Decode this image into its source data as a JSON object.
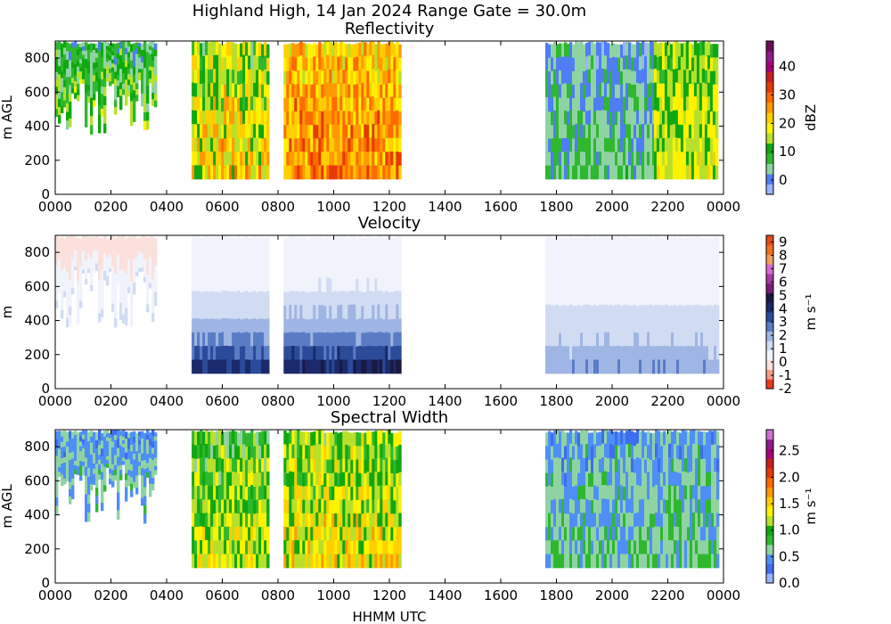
{
  "suptitle": "Highland High, 14 Jan 2024 Range Gate = 30.0m",
  "xlabel": "HHMM UTC",
  "colors": {
    "refl": [
      "#9ab4ff",
      "#4f7df5",
      "#8fd3a3",
      "#2fb82f",
      "#0fa80f",
      "#b8e02a",
      "#fff200",
      "#ffcf00",
      "#ff9a00",
      "#ff6a00",
      "#e43a00",
      "#c81e1e",
      "#a8007a",
      "#8e1a8e",
      "#6d0c5a"
    ],
    "vel": [
      "#e83c1e",
      "#f59c88",
      "#fbe0dc",
      "#f0f3fb",
      "#d0dcf2",
      "#9fb5e3",
      "#5a7cc5",
      "#2b4a9a",
      "#1a2a6a",
      "#1a1a40",
      "#7a1a7a",
      "#a63aa6",
      "#d86ad8",
      "#f0a060",
      "#f07020",
      "#e84a1a"
    ],
    "sw": [
      "#9ab4ff",
      "#3f6cf0",
      "#4f8ff5",
      "#8fd3a3",
      "#2fb82f",
      "#0fa80f",
      "#b8e02a",
      "#fff200",
      "#ffcf00",
      "#ff9a00",
      "#ff6a00",
      "#e43a00",
      "#c81e1e",
      "#a8007a",
      "#8e1a8e",
      "#d070d0"
    ]
  },
  "chart_data": [
    {
      "type": "heatmap",
      "title": "Reflectivity",
      "ylabel": "m AGL",
      "colorbar_label": "dBZ",
      "colorbar_ticks": [
        "0",
        "10",
        "20",
        "30",
        "40"
      ],
      "clim": [
        -5,
        49
      ],
      "xlim": [
        0,
        2400
      ],
      "ylim": [
        0,
        900
      ],
      "x_ticks": [
        "0000",
        "0200",
        "0400",
        "0600",
        "0800",
        "1000",
        "1200",
        "1400",
        "1600",
        "1800",
        "2000",
        "2200",
        "0000"
      ],
      "y_ticks": [
        "0",
        "200",
        "400",
        "600",
        "800"
      ],
      "segments": [
        {
          "x": [
            0,
            360
          ],
          "y_bottom": 450,
          "value_range": [
            0,
            18
          ]
        },
        {
          "x": [
            490,
            760
          ],
          "y_bottom": 90,
          "value_range": [
            5,
            30
          ]
        },
        {
          "x": [
            820,
            1240
          ],
          "y_bottom": 90,
          "value_range": [
            15,
            35
          ]
        },
        {
          "x": [
            1760,
            2150
          ],
          "y_bottom": 90,
          "value_range": [
            -2,
            10
          ]
        },
        {
          "x": [
            2150,
            2380
          ],
          "y_bottom": 90,
          "value_range": [
            8,
            22
          ]
        }
      ]
    },
    {
      "type": "heatmap",
      "title": "Velocity",
      "ylabel": "m",
      "colorbar_label": "m s⁻¹",
      "colorbar_ticks": [
        "-2",
        "-1",
        "0",
        "1",
        "2",
        "3",
        "4",
        "5",
        "6",
        "7",
        "8",
        "9"
      ],
      "clim": [
        -2,
        9.5
      ],
      "xlim": [
        0,
        2400
      ],
      "ylim": [
        0,
        900
      ],
      "x_ticks": [
        "0000",
        "0200",
        "0400",
        "0600",
        "0800",
        "1000",
        "1200",
        "1400",
        "1600",
        "1800",
        "2000",
        "2200",
        "0000"
      ],
      "y_ticks": [
        "0",
        "200",
        "400",
        "600",
        "800"
      ],
      "segments": [
        {
          "x": [
            0,
            360
          ],
          "y_bottom": 450,
          "value_range": [
            0,
            1.5
          ]
        },
        {
          "x": [
            490,
            760
          ],
          "y_bottom": 90,
          "value_range": [
            0.5,
            5.5
          ]
        },
        {
          "x": [
            820,
            1240
          ],
          "y_bottom": 90,
          "value_range": [
            0.5,
            6
          ]
        },
        {
          "x": [
            1760,
            2380
          ],
          "y_bottom": 90,
          "value_range": [
            0.5,
            3
          ]
        }
      ]
    },
    {
      "type": "heatmap",
      "title": "Spectral Width",
      "ylabel": "m AGL",
      "colorbar_label": "m s⁻¹",
      "colorbar_ticks": [
        "0.0",
        "0.5",
        "1.0",
        "1.5",
        "2.0",
        "2.5"
      ],
      "clim": [
        0,
        2.9
      ],
      "xlim": [
        0,
        2400
      ],
      "ylim": [
        0,
        900
      ],
      "x_ticks": [
        "0000",
        "0200",
        "0400",
        "0600",
        "0800",
        "1000",
        "1200",
        "1400",
        "1600",
        "1800",
        "2000",
        "2200",
        "0000"
      ],
      "y_ticks": [
        "0",
        "200",
        "400",
        "600",
        "800"
      ],
      "segments": [
        {
          "x": [
            0,
            360
          ],
          "y_bottom": 450,
          "value_range": [
            0.3,
            0.8
          ]
        },
        {
          "x": [
            490,
            760
          ],
          "y_bottom": 90,
          "value_range": [
            0.6,
            1.6
          ]
        },
        {
          "x": [
            820,
            1240
          ],
          "y_bottom": 90,
          "value_range": [
            0.7,
            1.8
          ]
        },
        {
          "x": [
            1760,
            2380
          ],
          "y_bottom": 90,
          "value_range": [
            0.3,
            0.9
          ]
        }
      ]
    }
  ]
}
